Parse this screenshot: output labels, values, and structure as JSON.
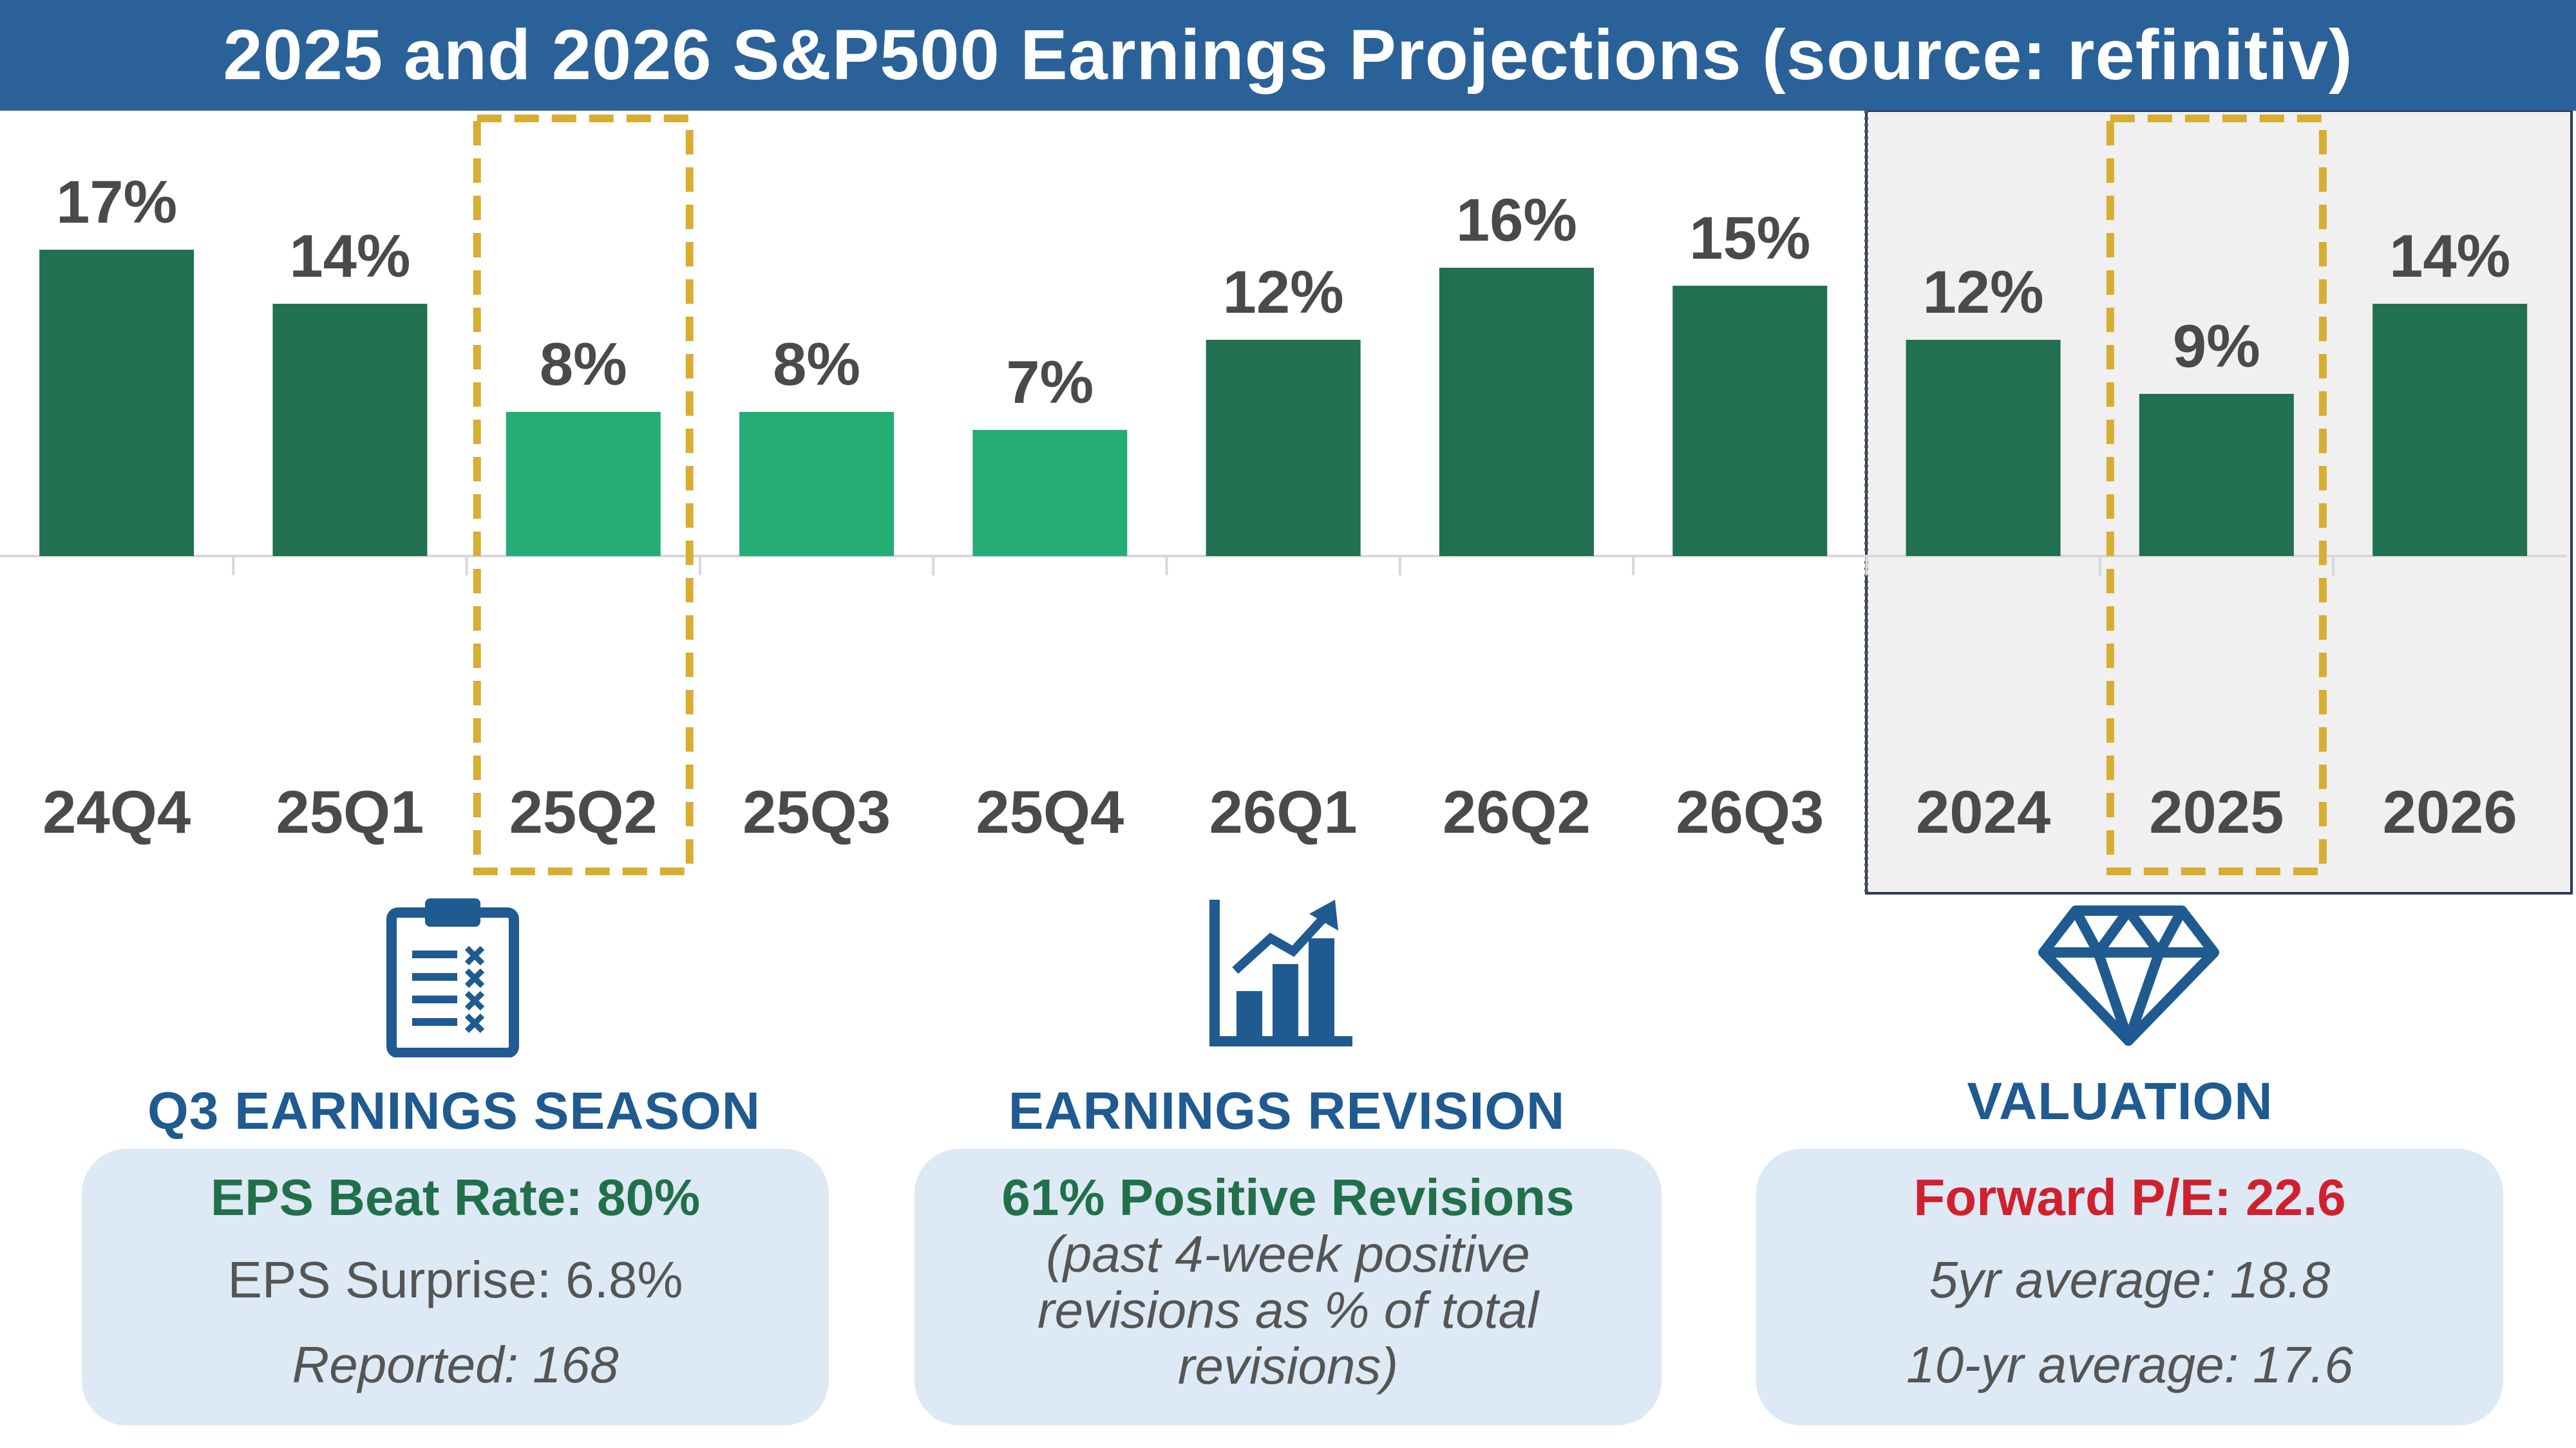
{
  "title": "2025 and 2026 S&P500 Earnings Projections (source: refinitiv)",
  "colors": {
    "title_bg": "#2a6199",
    "dark_green": "#217052",
    "light_green": "#25ad76",
    "highlight": "#d8ae32",
    "panel": "#f0f0f0",
    "section_blue": "#1f5a90",
    "box_bg": "#dde9f5",
    "green_text": "#21704a",
    "red_text": "#d0202e"
  },
  "chart_data": {
    "type": "bar",
    "title": "2025 and 2026 S&P500 Earnings Projections (source: refinitiv)",
    "xlabel": "",
    "ylabel": "",
    "categories": [
      "24Q4",
      "25Q1",
      "25Q2",
      "25Q3",
      "25Q4",
      "26Q1",
      "26Q2",
      "26Q3",
      "2024",
      "2025",
      "2026"
    ],
    "values": [
      17,
      14,
      8,
      8,
      7,
      12,
      16,
      15,
      12,
      9,
      14
    ],
    "data_labels": [
      "17%",
      "14%",
      "8%",
      "8%",
      "7%",
      "12%",
      "16%",
      "15%",
      "12%",
      "9%",
      "14%"
    ],
    "bar_shades": [
      "dark",
      "dark",
      "light",
      "light",
      "light",
      "dark",
      "dark",
      "dark",
      "dark",
      "dark",
      "dark"
    ],
    "highlighted": [
      "25Q2",
      "2025"
    ],
    "annual_group": [
      "2024",
      "2025",
      "2026"
    ],
    "ylim": [
      0,
      20
    ],
    "grid": false,
    "legend": "none"
  },
  "sections": [
    {
      "title": "Q3 EARNINGS SEASON",
      "icon": "clipboard-checklist-icon",
      "headline": "EPS Beat Rate: 80%",
      "lines": [
        "EPS Surprise: 6.8%",
        "Reported: 168"
      ]
    },
    {
      "title": "EARNINGS REVISION",
      "icon": "growth-bar-chart-icon",
      "headline": "61% Positive Revisions",
      "lines": [
        "(past 4-week positive",
        "revisions as % of total",
        "revisions)"
      ]
    },
    {
      "title": "VALUATION",
      "icon": "diamond-icon",
      "headline": "Forward P/E: 22.6",
      "lines": [
        "5yr average: 18.8",
        "10-yr average: 17.6"
      ]
    }
  ]
}
